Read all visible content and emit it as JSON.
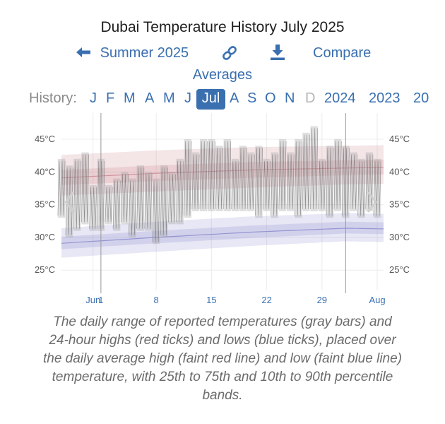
{
  "page": {
    "title": "Dubai Temperature History July 2025"
  },
  "toolbar": {
    "back_label": "Summer 2025",
    "compare_label": "Compare",
    "averages_label": "Averages"
  },
  "history": {
    "label": "History:",
    "months": [
      "J",
      "F",
      "M",
      "A",
      "M",
      "J",
      "Jul",
      "A",
      "S",
      "O",
      "N",
      "D"
    ],
    "selected_index": 6,
    "dimmed_index": 11,
    "years": [
      "2024",
      "2023",
      "20"
    ]
  },
  "caption": "The daily range of reported temperatures (gray bars) and 24-hour highs (red ticks) and lows (blue ticks), placed over the daily average high (faint red line) and low (faint blue line) temperature, with 25th to 75th and 10th to 90th percentile bands.",
  "colors": {
    "accent": "#3a6fb0",
    "high_band": "#c0707a",
    "low_band": "#7c7cc8",
    "range_bar": "#9a9a9a"
  },
  "chart_data": {
    "type": "bar",
    "y_unit": "°C",
    "ylim": [
      22,
      49
    ],
    "yticks": [
      25,
      30,
      35,
      40,
      45
    ],
    "ytick_labels": [
      "25°C",
      "30°C",
      "35°C",
      "40°C",
      "45°C"
    ],
    "x_tick_labels": [
      {
        "day": 0,
        "label": "Jun"
      },
      {
        "day": 1,
        "label": "1"
      },
      {
        "day": 8,
        "label": "8"
      },
      {
        "day": 15,
        "label": "15"
      },
      {
        "day": 22,
        "label": "22"
      },
      {
        "day": 29,
        "label": "29"
      },
      {
        "day": 36,
        "label": "Aug"
      }
    ],
    "x_range": [
      -4,
      36.8
    ],
    "month_boundaries": [
      1,
      32
    ],
    "grid": true,
    "avg_high": {
      "days": [
        -4,
        8,
        20,
        32,
        36.8
      ],
      "p50": [
        39.1,
        39.8,
        40.3,
        40.6,
        40.7
      ],
      "p25": [
        38.0,
        38.6,
        39.1,
        39.5,
        39.6
      ],
      "p75": [
        40.3,
        41.0,
        41.5,
        41.8,
        41.9
      ],
      "p10": [
        36.4,
        37.0,
        37.6,
        38.1,
        38.2
      ],
      "p90": [
        42.6,
        43.3,
        43.8,
        44.0,
        44.1
      ]
    },
    "avg_low": {
      "days": [
        -4,
        8,
        20,
        32,
        36.8
      ],
      "p50": [
        29.1,
        30.0,
        30.8,
        31.4,
        31.3
      ],
      "p25": [
        28.2,
        29.1,
        29.9,
        30.6,
        30.5
      ],
      "p75": [
        30.1,
        31.0,
        31.8,
        32.4,
        32.3
      ],
      "p10": [
        26.9,
        27.8,
        28.7,
        29.4,
        29.3
      ],
      "p90": [
        31.4,
        32.4,
        33.2,
        33.7,
        33.6
      ]
    },
    "daily_ranges": [
      {
        "day": -4,
        "low": 33,
        "high": 42
      },
      {
        "day": -3,
        "low": 30,
        "high": 41
      },
      {
        "day": -2,
        "low": 31,
        "high": 42
      },
      {
        "day": -1,
        "low": 32,
        "high": 43
      },
      {
        "day": 0,
        "low": 31,
        "high": 38
      },
      {
        "day": 1,
        "low": 31,
        "high": 42
      },
      {
        "day": 2,
        "low": 32,
        "high": 38
      },
      {
        "day": 3,
        "low": 31,
        "high": 39
      },
      {
        "day": 4,
        "low": 32,
        "high": 40
      },
      {
        "day": 5,
        "low": 30,
        "high": 39
      },
      {
        "day": 6,
        "low": 31,
        "high": 41
      },
      {
        "day": 7,
        "low": 31,
        "high": 40
      },
      {
        "day": 8,
        "low": 29,
        "high": 39
      },
      {
        "day": 9,
        "low": 30,
        "high": 41
      },
      {
        "day": 10,
        "low": 32,
        "high": 40
      },
      {
        "day": 11,
        "low": 32,
        "high": 42
      },
      {
        "day": 12,
        "low": 33,
        "high": 45
      },
      {
        "day": 13,
        "low": 34,
        "high": 43
      },
      {
        "day": 14,
        "low": 34,
        "high": 45
      },
      {
        "day": 15,
        "low": 34,
        "high": 45
      },
      {
        "day": 16,
        "low": 34,
        "high": 44
      },
      {
        "day": 17,
        "low": 34,
        "high": 45
      },
      {
        "day": 18,
        "low": 34,
        "high": 42
      },
      {
        "day": 19,
        "low": 34,
        "high": 44
      },
      {
        "day": 20,
        "low": 34,
        "high": 43
      },
      {
        "day": 21,
        "low": 33,
        "high": 44
      },
      {
        "day": 22,
        "low": 34,
        "high": 42
      },
      {
        "day": 23,
        "low": 33,
        "high": 43
      },
      {
        "day": 24,
        "low": 34,
        "high": 45
      },
      {
        "day": 25,
        "low": 34,
        "high": 43
      },
      {
        "day": 26,
        "low": 33,
        "high": 45
      },
      {
        "day": 27,
        "low": 34,
        "high": 46
      },
      {
        "day": 28,
        "low": 34,
        "high": 47
      },
      {
        "day": 29,
        "low": 34,
        "high": 42
      },
      {
        "day": 30,
        "low": 33,
        "high": 44
      },
      {
        "day": 31,
        "low": 34,
        "high": 45
      },
      {
        "day": 32,
        "low": 33,
        "high": 44
      },
      {
        "day": 33,
        "low": 34,
        "high": 43
      },
      {
        "day": 34,
        "low": 33,
        "high": 42
      },
      {
        "day": 35,
        "low": 34,
        "high": 43
      },
      {
        "day": 36,
        "low": 33,
        "high": 42
      }
    ]
  }
}
